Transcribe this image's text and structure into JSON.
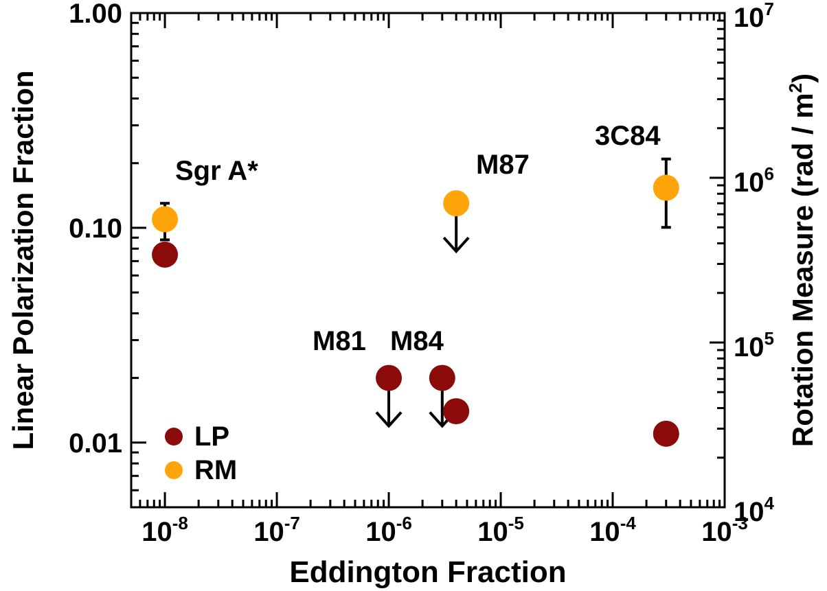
{
  "chart_data": {
    "type": "scatter",
    "xlabel": "Eddington Fraction",
    "ylabel": "Linear Polarization Fraction",
    "y2label": "Rotation Measure (rad / m",
    "y2label_sup": "2",
    "y2label_close": ")",
    "xscale": "log",
    "yscale": "log",
    "y2scale": "log",
    "xlim": [
      5e-09,
      0.001
    ],
    "ylim": [
      0.005,
      1.0
    ],
    "y2lim": [
      10000,
      10000000
    ],
    "x_ticks": [
      {
        "value": 1e-08,
        "base": "10",
        "exp": "-8"
      },
      {
        "value": 1e-07,
        "base": "10",
        "exp": "-7"
      },
      {
        "value": 1e-06,
        "base": "10",
        "exp": "-6"
      },
      {
        "value": 1e-05,
        "base": "10",
        "exp": "-5"
      },
      {
        "value": 0.0001,
        "base": "10",
        "exp": "-4"
      },
      {
        "value": 0.001,
        "base": "10",
        "exp": "-3"
      }
    ],
    "y_ticks": [
      {
        "value": 0.01,
        "label": "0.01"
      },
      {
        "value": 0.1,
        "label": "0.10"
      },
      {
        "value": 1.0,
        "label": "1.00"
      }
    ],
    "y2_ticks": [
      {
        "value": 10000,
        "base": "10",
        "exp": "4"
      },
      {
        "value": 100000,
        "base": "10",
        "exp": "5"
      },
      {
        "value": 1000000,
        "base": "10",
        "exp": "6"
      },
      {
        "value": 10000000,
        "base": "10",
        "exp": "7"
      }
    ],
    "series": [
      {
        "name": "LP",
        "color": "#8b0b0b",
        "axis": "left",
        "points": [
          {
            "x": 1e-08,
            "y": 0.075
          },
          {
            "x": 1e-06,
            "y": 0.02,
            "upper_limit": true
          },
          {
            "x": 3e-06,
            "y": 0.02,
            "upper_limit": true
          },
          {
            "x": 4e-06,
            "y": 0.014
          },
          {
            "x": 0.0003,
            "y": 0.011
          }
        ]
      },
      {
        "name": "RM",
        "color": "#ffa50a",
        "axis": "right",
        "points": [
          {
            "x": 1e-08,
            "y": 560000,
            "err_low": 420000,
            "err_high": 700000
          },
          {
            "x": 4e-06,
            "y": 700000,
            "upper_limit": true
          },
          {
            "x": 0.0003,
            "y": 870000,
            "err_low": 500000,
            "err_high": 1300000
          }
        ]
      }
    ],
    "annotations": [
      {
        "text": "Sgr A*",
        "x": 1e-08
      },
      {
        "text": "M87",
        "x": 4e-06
      },
      {
        "text": "3C84",
        "x": 0.0003
      },
      {
        "text": "M81",
        "x": 1e-06
      },
      {
        "text": "M84",
        "x": 3e-06
      }
    ],
    "legend": {
      "position": "bottom-left",
      "entries": [
        {
          "label": "LP",
          "color": "#8b0b0b"
        },
        {
          "label": "RM",
          "color": "#ffa50a"
        }
      ]
    }
  }
}
